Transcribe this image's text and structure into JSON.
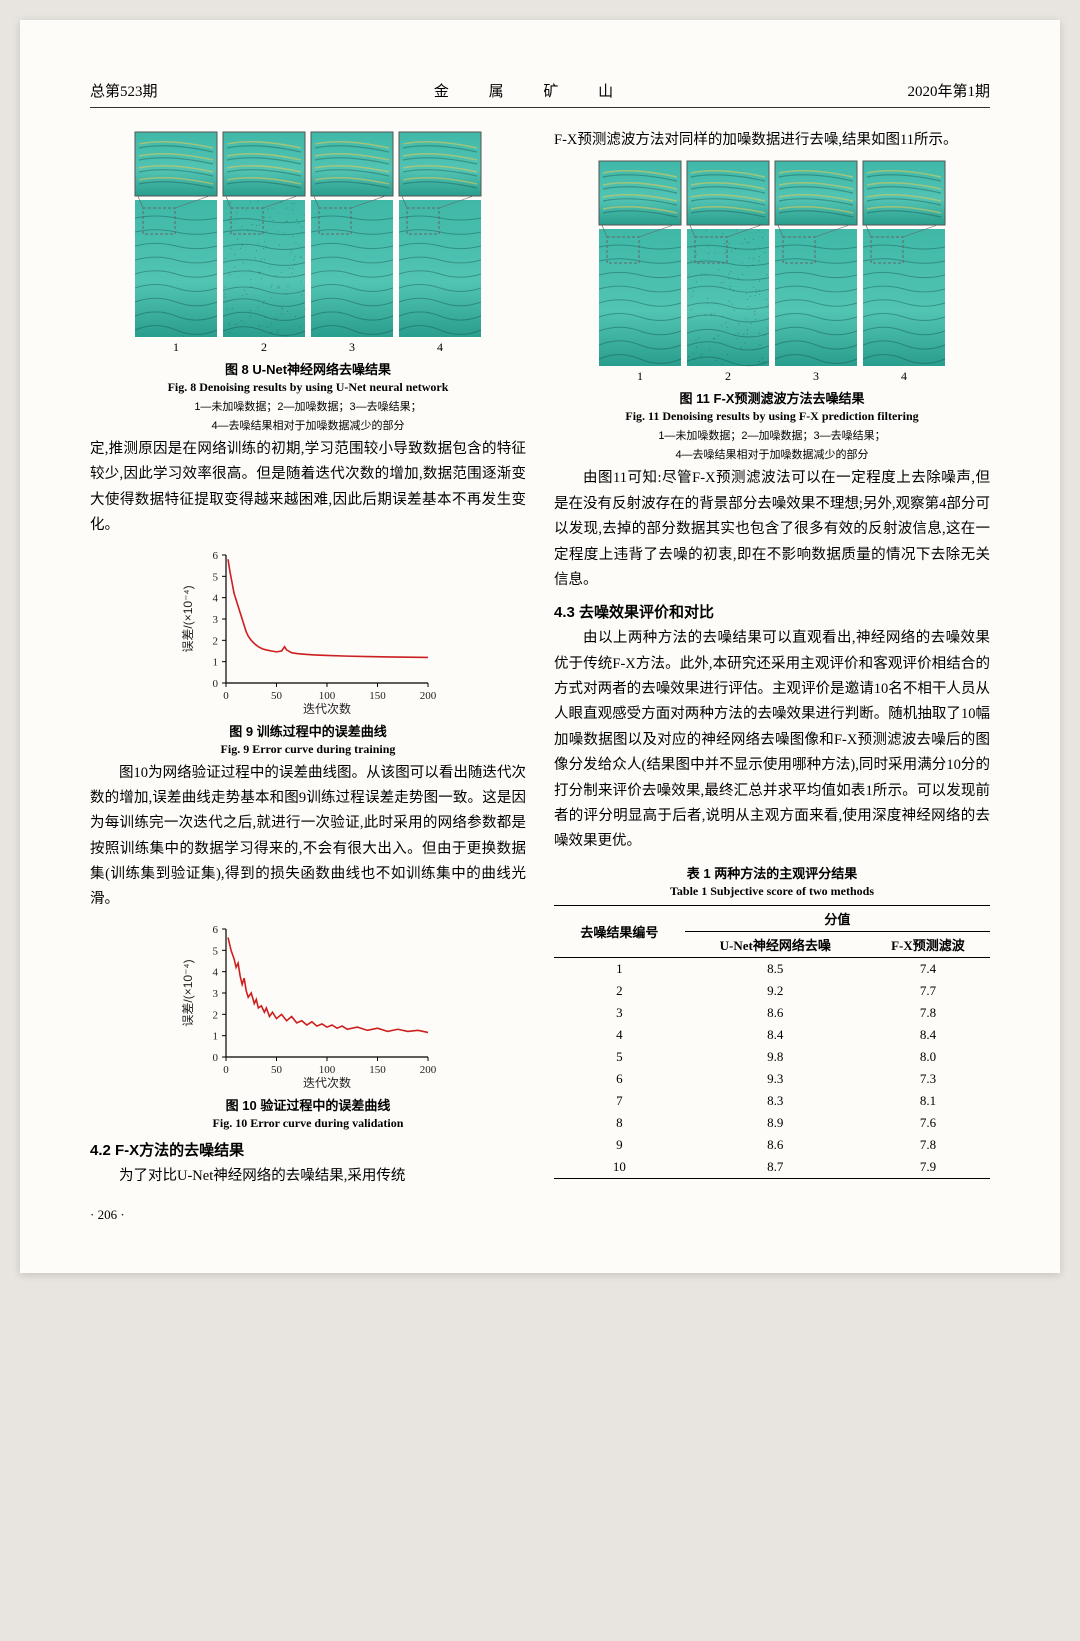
{
  "header": {
    "left": "总第523期",
    "center": "金 属 矿 山",
    "right": "2020年第1期"
  },
  "page_number": "· 206 ·",
  "col_left": {
    "fig8": {
      "caption_cn": "图 8  U-Net神经网络去噪结果",
      "caption_en": "Fig. 8  Denoising results by using U-Net neural network",
      "legend1": "1—未加噪数据；2—加噪数据；3—去噪结果；",
      "legend2": "4—去噪结果相对于加噪数据减少的部分",
      "panel_labels": [
        "1",
        "2",
        "3",
        "4"
      ],
      "panel_color": "#3fb8a8",
      "inset_border": "#555555",
      "dash_color": "#666666"
    },
    "para1": "定,推测原因是在网络训练的初期,学习范围较小导致数据包含的特征较少,因此学习效率很高。但是随着迭代次数的增加,数据范围逐渐变大使得数据特征提取变得越来越困难,因此后期误差基本不再发生变化。",
    "fig9": {
      "type": "line",
      "xlabel": "迭代次数",
      "ylabel": "误差/(×10⁻⁴)",
      "xlim": [
        0,
        200
      ],
      "xtick_step": 50,
      "ylim": [
        0,
        6
      ],
      "ytick_step": 1,
      "line_color": "#cc1f1f",
      "background_color": "#fdfcf8",
      "line_width": 1.6,
      "data": [
        [
          2,
          5.8
        ],
        [
          4,
          5.2
        ],
        [
          6,
          4.7
        ],
        [
          8,
          4.2
        ],
        [
          10,
          3.9
        ],
        [
          12,
          3.6
        ],
        [
          14,
          3.3
        ],
        [
          16,
          3.0
        ],
        [
          18,
          2.7
        ],
        [
          20,
          2.4
        ],
        [
          22,
          2.2
        ],
        [
          25,
          2.0
        ],
        [
          28,
          1.85
        ],
        [
          32,
          1.7
        ],
        [
          36,
          1.6
        ],
        [
          40,
          1.55
        ],
        [
          45,
          1.5
        ],
        [
          50,
          1.46
        ],
        [
          55,
          1.5
        ],
        [
          58,
          1.7
        ],
        [
          60,
          1.55
        ],
        [
          65,
          1.42
        ],
        [
          70,
          1.38
        ],
        [
          80,
          1.34
        ],
        [
          90,
          1.31
        ],
        [
          100,
          1.29
        ],
        [
          120,
          1.26
        ],
        [
          140,
          1.24
        ],
        [
          160,
          1.22
        ],
        [
          180,
          1.21
        ],
        [
          200,
          1.2
        ]
      ],
      "caption_cn": "图 9  训练过程中的误差曲线",
      "caption_en": "Fig. 9  Error curve during training"
    },
    "para2": "图10为网络验证过程中的误差曲线图。从该图可以看出随迭代次数的增加,误差曲线走势基本和图9训练过程误差走势图一致。这是因为每训练完一次迭代之后,就进行一次验证,此时采用的网络参数都是按照训练集中的数据学习得来的,不会有很大出入。但由于更换数据集(训练集到验证集),得到的损失函数曲线也不如训练集中的曲线光滑。",
    "fig10": {
      "type": "line",
      "xlabel": "迭代次数",
      "ylabel": "误差/(×10⁻⁴)",
      "xlim": [
        0,
        200
      ],
      "xtick_step": 50,
      "ylim": [
        0,
        6
      ],
      "ytick_step": 1,
      "line_color": "#cc1f1f",
      "background_color": "#fdfcf8",
      "line_width": 1.6,
      "data": [
        [
          2,
          5.6
        ],
        [
          5,
          5.0
        ],
        [
          8,
          4.6
        ],
        [
          10,
          4.2
        ],
        [
          12,
          4.4
        ],
        [
          14,
          3.8
        ],
        [
          16,
          3.4
        ],
        [
          18,
          3.7
        ],
        [
          20,
          3.1
        ],
        [
          22,
          2.8
        ],
        [
          25,
          3.0
        ],
        [
          28,
          2.5
        ],
        [
          30,
          2.7
        ],
        [
          32,
          2.3
        ],
        [
          35,
          2.4
        ],
        [
          38,
          2.1
        ],
        [
          40,
          2.3
        ],
        [
          43,
          1.9
        ],
        [
          46,
          2.1
        ],
        [
          50,
          1.8
        ],
        [
          55,
          2.0
        ],
        [
          60,
          1.7
        ],
        [
          65,
          1.9
        ],
        [
          70,
          1.6
        ],
        [
          75,
          1.7
        ],
        [
          80,
          1.5
        ],
        [
          85,
          1.65
        ],
        [
          90,
          1.45
        ],
        [
          95,
          1.55
        ],
        [
          100,
          1.4
        ],
        [
          105,
          1.5
        ],
        [
          110,
          1.35
        ],
        [
          115,
          1.45
        ],
        [
          120,
          1.3
        ],
        [
          130,
          1.4
        ],
        [
          140,
          1.25
        ],
        [
          150,
          1.35
        ],
        [
          160,
          1.2
        ],
        [
          170,
          1.3
        ],
        [
          180,
          1.2
        ],
        [
          190,
          1.25
        ],
        [
          200,
          1.15
        ]
      ],
      "caption_cn": "图 10  验证过程中的误差曲线",
      "caption_en": "Fig. 10  Error curve during validation"
    },
    "sec42_heading": "4.2  F-X方法的去噪结果",
    "sec42_text": "为了对比U-Net神经网络的去噪结果,采用传统"
  },
  "col_right": {
    "para_top": "F-X预测滤波方法对同样的加噪数据进行去噪,结果如图11所示。",
    "fig11": {
      "caption_cn": "图 11  F-X预测滤波方法去噪结果",
      "caption_en": "Fig. 11  Denoising results by using F-X prediction filtering",
      "legend1": "1—未加噪数据；2—加噪数据；3—去噪结果；",
      "legend2": "4—去噪结果相对于加噪数据减少的部分",
      "panel_labels": [
        "1",
        "2",
        "3",
        "4"
      ],
      "panel_color": "#3fb8a8",
      "inset_border": "#555555",
      "dash_color": "#666666"
    },
    "para_after11": "由图11可知:尽管F-X预测滤波法可以在一定程度上去除噪声,但是在没有反射波存在的背景部分去噪效果不理想;另外,观察第4部分可以发现,去掉的部分数据其实也包含了很多有效的反射波信息,这在一定程度上违背了去噪的初衷,即在不影响数据质量的情况下去除无关信息。",
    "sec43_heading": "4.3  去噪效果评价和对比",
    "sec43_text": "由以上两种方法的去噪结果可以直观看出,神经网络的去噪效果优于传统F-X方法。此外,本研究还采用主观评价和客观评价相结合的方式对两者的去噪效果进行评估。主观评价是邀请10名不相干人员从人眼直观感受方面对两种方法的去噪效果进行判断。随机抽取了10幅加噪数据图以及对应的神经网络去噪图像和F-X预测滤波去噪后的图像分发给众人(结果图中并不显示使用哪种方法),同时采用满分10分的打分制来评价去噪效果,最终汇总并求平均值如表1所示。可以发现前者的评分明显高于后者,说明从主观方面来看,使用深度神经网络的去噪效果更优。",
    "table1": {
      "caption_cn": "表 1  两种方法的主观评分结果",
      "caption_en": "Table 1  Subjective score of two methods",
      "col_header_group": "分值",
      "columns": [
        "去噪结果编号",
        "U-Net神经网络去噪",
        "F-X预测滤波"
      ],
      "rows": [
        [
          "1",
          "8.5",
          "7.4"
        ],
        [
          "2",
          "9.2",
          "7.7"
        ],
        [
          "3",
          "8.6",
          "7.8"
        ],
        [
          "4",
          "8.4",
          "8.4"
        ],
        [
          "5",
          "9.8",
          "8.0"
        ],
        [
          "6",
          "9.3",
          "7.3"
        ],
        [
          "7",
          "8.3",
          "8.1"
        ],
        [
          "8",
          "8.9",
          "7.6"
        ],
        [
          "9",
          "8.6",
          "7.8"
        ],
        [
          "10",
          "8.7",
          "7.9"
        ]
      ]
    }
  }
}
